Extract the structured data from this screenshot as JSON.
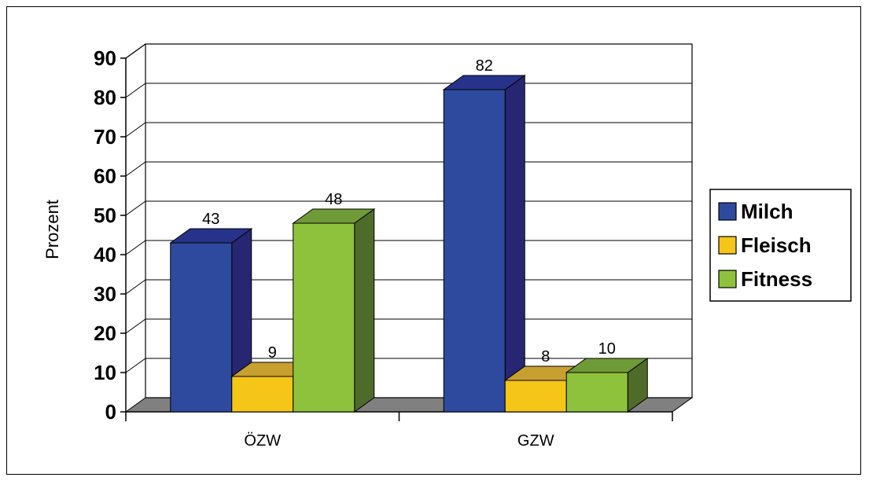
{
  "chart_data": {
    "type": "bar",
    "categories": [
      "ÖZW",
      "GZW"
    ],
    "series": [
      {
        "name": "Milch",
        "values": [
          43,
          82
        ],
        "color": "#2E4A9E",
        "top": "#27338A",
        "side": "#262673"
      },
      {
        "name": "Fleisch",
        "values": [
          9,
          8
        ],
        "color": "#F5C518",
        "top": "#C8A030",
        "side": "#B08A20"
      },
      {
        "name": "Fitness",
        "values": [
          48,
          10
        ],
        "color": "#8FC23C",
        "top": "#6F9A38",
        "side": "#4F6B2A"
      }
    ],
    "ylabel": "Prozent",
    "xlabel": "",
    "ylim": [
      0,
      90
    ],
    "yticks": [
      "0",
      "10",
      "20",
      "30",
      "40",
      "50",
      "60",
      "70",
      "80",
      "90"
    ],
    "grid": true,
    "legend": "right",
    "style": "3d-clustered-column"
  }
}
